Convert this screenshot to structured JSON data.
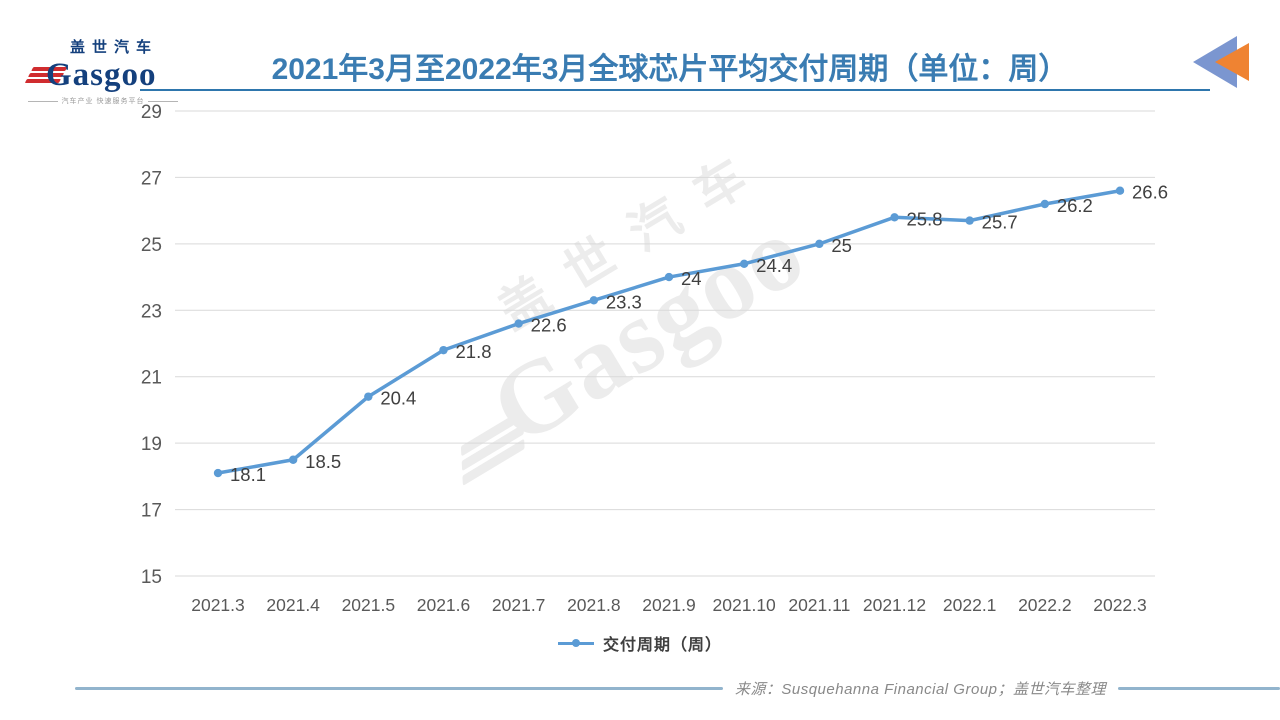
{
  "logo": {
    "cn": "盖世汽车",
    "en": "Gasgoo",
    "tagline": "汽车产业 快速服务平台"
  },
  "header": {
    "title": "2021年3月至2022年3月全球芯片平均交付周期（单位：周）"
  },
  "watermark": {
    "cn": "盖世汽车",
    "en": "Gasgoo"
  },
  "chart_data": {
    "type": "line",
    "title": "2021年3月至2022年3月全球芯片平均交付周期（单位：周）",
    "categories": [
      "2021.3",
      "2021.4",
      "2021.5",
      "2021.6",
      "2021.7",
      "2021.8",
      "2021.9",
      "2021.10",
      "2021.11",
      "2021.12",
      "2022.1",
      "2022.2",
      "2022.3"
    ],
    "series": [
      {
        "name": "交付周期（周）",
        "values": [
          18.1,
          18.5,
          20.4,
          21.8,
          22.6,
          23.3,
          24,
          24.4,
          25,
          25.8,
          25.7,
          26.2,
          26.6
        ],
        "labels": [
          "18.1",
          "18.5",
          "20.4",
          "21.8",
          "22.6",
          "23.3",
          "24",
          "24.4",
          "25",
          "25.8",
          "25.7",
          "26.2",
          "26.6"
        ]
      }
    ],
    "xlabel": "",
    "ylabel": "",
    "ylim": [
      15,
      29
    ],
    "yticks": [
      15,
      17,
      19,
      21,
      23,
      25,
      27,
      29
    ],
    "grid": true,
    "legend_position": "bottom",
    "colors": {
      "line": "#5b9bd5",
      "marker": "#5b9bd5",
      "grid": "#d9d9d9",
      "axis_text": "#595959",
      "data_label": "#404040"
    }
  },
  "legend": {
    "label": "交付周期（周）"
  },
  "footer": {
    "source": "来源：Susquehanna Financial Group；盖世汽车整理"
  },
  "colors": {
    "title": "#3a7cb2",
    "title_rule": "#2e76ad",
    "corner_blue": "#7b96d0",
    "corner_orange": "#ef8332",
    "logo_navy": "#14407d",
    "logo_red": "#d02c2f",
    "footer_rule": "#92b4cd"
  }
}
